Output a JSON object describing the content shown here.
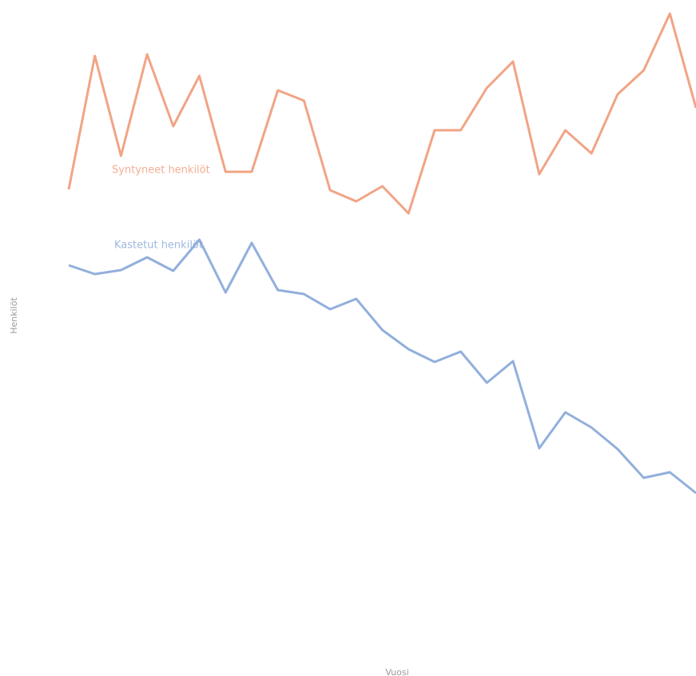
{
  "chart_data": {
    "type": "line",
    "x_label": "Vuosi",
    "y_label": "Henkilöt",
    "categories": [
      null,
      null,
      null,
      null,
      null,
      null,
      null,
      null,
      null,
      null,
      null,
      null,
      null,
      null,
      null,
      null,
      null,
      null,
      null,
      null,
      null,
      null,
      null,
      null,
      null
    ],
    "ylim": [
      0,
      800
    ],
    "series": [
      {
        "name": "Syntyneet henkilöt",
        "color": "#f09a78",
        "values": [
          563,
          730,
          605,
          732,
          642,
          705,
          585,
          585,
          687,
          674,
          562,
          548,
          567,
          533,
          637,
          637,
          690,
          723,
          582,
          637,
          608,
          682,
          712,
          783,
          665
        ]
      },
      {
        "name": "Kastetut henkilöt",
        "color": "#86a6d8",
        "values": [
          468,
          457,
          462,
          478,
          461,
          500,
          434,
          496,
          437,
          432,
          413,
          426,
          387,
          363,
          347,
          360,
          321,
          348,
          239,
          284,
          265,
          238,
          202,
          209,
          183
        ]
      }
    ]
  }
}
